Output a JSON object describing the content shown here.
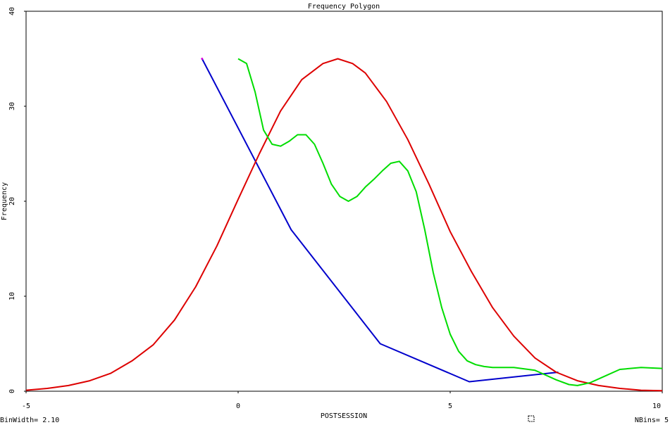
{
  "chart_data": {
    "type": "line",
    "title": "Frequency Polygon",
    "xlabel": "POSTSESSION",
    "ylabel": "Frequency",
    "xlim": [
      -5,
      10
    ],
    "ylim": [
      0,
      40
    ],
    "xticks": [
      -5,
      0,
      5,
      10
    ],
    "yticks": [
      0,
      10,
      20,
      30,
      40
    ],
    "grid": false,
    "legend": "none",
    "series": [
      {
        "color": "#0000cc",
        "kind": "frequency-polygon",
        "x": [
          -0.85,
          1.25,
          3.35,
          5.45,
          7.55
        ],
        "y": [
          35,
          17,
          5,
          1,
          2
        ]
      },
      {
        "color": "#dd0000",
        "kind": "normal-curve",
        "x": [
          -5.0,
          -4.5,
          -4.0,
          -3.5,
          -3.0,
          -2.5,
          -2.0,
          -1.5,
          -1.0,
          -0.5,
          0.0,
          0.5,
          1.0,
          1.5,
          2.0,
          2.35,
          2.7,
          3.0,
          3.5,
          4.0,
          4.5,
          5.0,
          5.5,
          6.0,
          6.5,
          7.0,
          7.5,
          8.0,
          8.5,
          9.0,
          9.5,
          10.0
        ],
        "y": [
          0.1,
          0.3,
          0.6,
          1.1,
          1.9,
          3.2,
          4.9,
          7.5,
          11.0,
          15.3,
          20.2,
          25.0,
          29.5,
          32.8,
          34.5,
          35.0,
          34.5,
          33.5,
          30.5,
          26.5,
          21.8,
          16.8,
          12.6,
          8.8,
          5.8,
          3.5,
          2.0,
          1.1,
          0.6,
          0.3,
          0.1,
          0.05
        ]
      },
      {
        "color": "#00dd00",
        "kind": "smoothed",
        "x": [
          0.0,
          0.2,
          0.4,
          0.6,
          0.8,
          1.0,
          1.2,
          1.4,
          1.6,
          1.8,
          2.0,
          2.2,
          2.4,
          2.6,
          2.8,
          3.0,
          3.2,
          3.4,
          3.6,
          3.8,
          4.0,
          4.2,
          4.4,
          4.6,
          4.8,
          5.0,
          5.2,
          5.4,
          5.6,
          5.8,
          6.0,
          6.2,
          6.5,
          7.0,
          7.5,
          7.8,
          8.0,
          8.3,
          8.6,
          9.0,
          9.5,
          10.0
        ],
        "y": [
          35,
          34.5,
          31.5,
          27.5,
          26.0,
          25.8,
          26.3,
          27.0,
          27.0,
          26.0,
          24.0,
          21.8,
          20.5,
          20.0,
          20.5,
          21.5,
          22.3,
          23.2,
          24.0,
          24.2,
          23.2,
          21.0,
          17.0,
          12.5,
          8.8,
          6.0,
          4.2,
          3.2,
          2.8,
          2.6,
          2.5,
          2.5,
          2.5,
          2.2,
          1.2,
          0.7,
          0.6,
          0.9,
          1.5,
          2.3,
          2.5,
          2.4
        ]
      }
    ]
  },
  "footer": {
    "binwidth": "BinWidth= 2.10",
    "nbins": "NBins= 5"
  }
}
